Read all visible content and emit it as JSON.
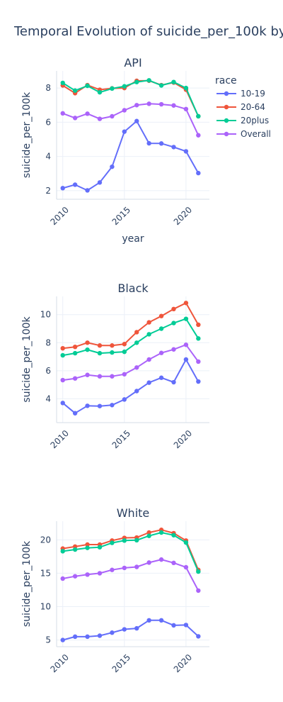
{
  "figure": {
    "title": "Temporal Evolution of suicide_per_100k by r",
    "legend_title": "race",
    "legend_placement": "right of top panel"
  },
  "chart_data": [
    {
      "type": "line",
      "title": "API",
      "xlabel": "year",
      "ylabel": "suicide_per_100k",
      "x": [
        2010,
        2011,
        2012,
        2013,
        2014,
        2015,
        2016,
        2017,
        2018,
        2019,
        2020,
        2021
      ],
      "xticks": [
        2010,
        2015,
        2020
      ],
      "xlim": [
        2009.5,
        2021.9
      ],
      "ylim": [
        1.5,
        9.0
      ],
      "yticks": [
        2,
        4,
        6,
        8
      ],
      "grid": true,
      "series": [
        {
          "name": "10-19",
          "color": "#636efa",
          "values": [
            2.15,
            2.35,
            2.02,
            2.48,
            3.4,
            5.45,
            6.07,
            4.77,
            4.76,
            4.55,
            4.3,
            3.03
          ]
        },
        {
          "name": "20-64",
          "color": "#EF553B",
          "values": [
            8.15,
            7.7,
            8.17,
            7.9,
            7.98,
            8.0,
            8.42,
            8.43,
            8.17,
            8.32,
            7.9,
            6.35
          ]
        },
        {
          "name": "20plus",
          "color": "#00cc96",
          "values": [
            8.3,
            7.85,
            8.13,
            7.75,
            7.97,
            8.1,
            8.35,
            8.45,
            8.15,
            8.35,
            8.0,
            6.35
          ]
        },
        {
          "name": "Overall",
          "color": "#ab63fa",
          "values": [
            6.52,
            6.25,
            6.5,
            6.2,
            6.35,
            6.7,
            7.0,
            7.08,
            7.05,
            6.98,
            6.77,
            5.24
          ]
        }
      ]
    },
    {
      "type": "line",
      "title": "Black",
      "xlabel": "",
      "ylabel": "suicide_per_100k",
      "x": [
        2010,
        2011,
        2012,
        2013,
        2014,
        2015,
        2016,
        2017,
        2018,
        2019,
        2020,
        2021
      ],
      "xticks": [
        2010,
        2015,
        2020
      ],
      "xlim": [
        2009.5,
        2021.9
      ],
      "ylim": [
        2.3,
        11.3
      ],
      "yticks": [
        4,
        6,
        8,
        10
      ],
      "grid": true,
      "series": [
        {
          "name": "10-19",
          "color": "#636efa",
          "values": [
            3.7,
            2.97,
            3.5,
            3.48,
            3.55,
            3.95,
            4.55,
            5.15,
            5.5,
            5.18,
            6.8,
            5.23
          ]
        },
        {
          "name": "20-64",
          "color": "#EF553B",
          "values": [
            7.6,
            7.7,
            8.0,
            7.8,
            7.8,
            7.9,
            8.75,
            9.45,
            9.9,
            10.4,
            10.83,
            9.28
          ]
        },
        {
          "name": "20plus",
          "color": "#00cc96",
          "values": [
            7.1,
            7.25,
            7.5,
            7.25,
            7.3,
            7.35,
            8.0,
            8.6,
            9.0,
            9.4,
            9.7,
            8.3
          ]
        },
        {
          "name": "Overall",
          "color": "#ab63fa",
          "values": [
            5.33,
            5.45,
            5.7,
            5.6,
            5.6,
            5.75,
            6.23,
            6.8,
            7.27,
            7.52,
            7.85,
            6.65
          ]
        }
      ]
    },
    {
      "type": "line",
      "title": "White",
      "xlabel": "",
      "ylabel": "suicide_per_100k",
      "x": [
        2010,
        2011,
        2012,
        2013,
        2014,
        2015,
        2016,
        2017,
        2018,
        2019,
        2020,
        2021
      ],
      "xticks": [
        2010,
        2015,
        2020
      ],
      "xlim": [
        2009.5,
        2021.9
      ],
      "ylim": [
        4.0,
        22.8
      ],
      "yticks": [
        5,
        10,
        15,
        20
      ],
      "grid": true,
      "series": [
        {
          "name": "10-19",
          "color": "#636efa",
          "values": [
            5.0,
            5.5,
            5.5,
            5.65,
            6.1,
            6.6,
            6.75,
            7.95,
            7.95,
            7.2,
            7.25,
            5.55
          ]
        },
        {
          "name": "20-64",
          "color": "#EF553B",
          "values": [
            18.7,
            19.0,
            19.3,
            19.3,
            19.9,
            20.3,
            20.35,
            21.1,
            21.5,
            21.0,
            19.9,
            15.5
          ]
        },
        {
          "name": "20plus",
          "color": "#00cc96",
          "values": [
            18.3,
            18.55,
            18.8,
            18.9,
            19.55,
            19.9,
            19.95,
            20.6,
            21.1,
            20.7,
            19.6,
            15.25
          ]
        },
        {
          "name": "Overall",
          "color": "#ab63fa",
          "values": [
            14.2,
            14.55,
            14.8,
            15.0,
            15.5,
            15.8,
            15.95,
            16.6,
            17.05,
            16.55,
            15.9,
            12.4
          ]
        }
      ]
    }
  ]
}
